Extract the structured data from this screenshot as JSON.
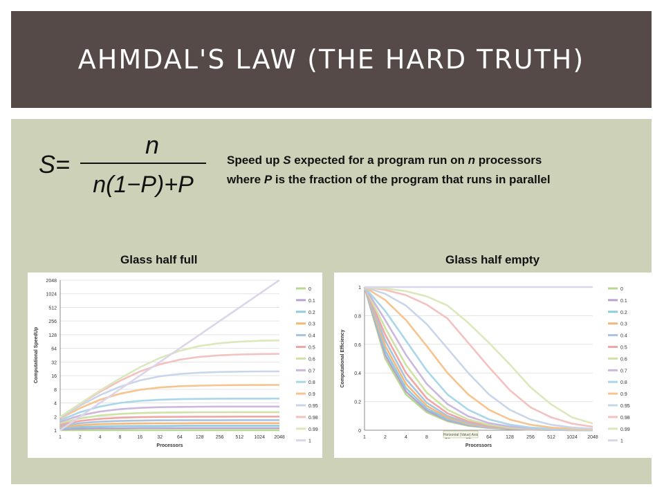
{
  "title": "AHMDAL'S LAW (THE HARD TRUTH)",
  "formula": {
    "lhs": "S=",
    "numerator": "n",
    "denominator": "n(1−P)+P"
  },
  "description": {
    "line1": [
      "Speed up ",
      "S",
      " expected for a program run on ",
      "n",
      " processors"
    ],
    "line2": [
      "where ",
      "P",
      " is the fraction of the program that runs in parallel"
    ]
  },
  "colors": {
    "series": [
      "#b7d98e",
      "#b8a2cf",
      "#8fcbe0",
      "#f4b77a",
      "#a8c3dd",
      "#efa6a4",
      "#cfe2a6",
      "#cbb8de",
      "#a9d6e8",
      "#f7c48f",
      "#c9d6ea",
      "#f3c2c0",
      "#dbe8bb",
      "#dcd5ea"
    ]
  },
  "chart_data": [
    {
      "type": "line",
      "title": "Glass half full",
      "xlabel": "Processors",
      "ylabel": "Computational SpeedUp",
      "y_scale": "log2",
      "x": [
        1,
        2,
        4,
        8,
        16,
        32,
        64,
        128,
        256,
        512,
        1024,
        2048
      ],
      "x_tick_labels": [
        "1",
        "2",
        "4",
        "8",
        "16",
        "32",
        "64",
        "128",
        "256",
        "512",
        "1024",
        "2048"
      ],
      "y_ticks": [
        1,
        2,
        4,
        8,
        16,
        32,
        64,
        128,
        256,
        512,
        1024,
        2048
      ],
      "ylim": [
        1,
        2048
      ],
      "legend_position": "right",
      "series": [
        {
          "name": "0",
          "values": [
            1,
            1,
            1,
            1,
            1,
            1,
            1,
            1,
            1,
            1,
            1,
            1
          ]
        },
        {
          "name": "0.1",
          "values": [
            1.05,
            1.08,
            1.1,
            1.1,
            1.11,
            1.11,
            1.11,
            1.11,
            1.11,
            1.11,
            1.11,
            1.11
          ]
        },
        {
          "name": "0.2",
          "values": [
            1.11,
            1.18,
            1.21,
            1.23,
            1.24,
            1.24,
            1.25,
            1.25,
            1.25,
            1.25,
            1.25,
            1.25
          ]
        },
        {
          "name": "0.3",
          "values": [
            1.18,
            1.29,
            1.36,
            1.39,
            1.41,
            1.42,
            1.42,
            1.43,
            1.43,
            1.43,
            1.43,
            1.43
          ]
        },
        {
          "name": "0.4",
          "values": [
            1.25,
            1.43,
            1.54,
            1.6,
            1.63,
            1.65,
            1.66,
            1.66,
            1.66,
            1.67,
            1.67,
            1.67
          ]
        },
        {
          "name": "0.5",
          "values": [
            1.33,
            1.6,
            1.78,
            1.88,
            1.94,
            1.97,
            1.98,
            1.99,
            1.99,
            2,
            2,
            2
          ]
        },
        {
          "name": "0.6",
          "values": [
            1.43,
            1.82,
            2.11,
            2.29,
            2.39,
            2.44,
            2.47,
            2.49,
            2.49,
            2.5,
            2.5,
            2.5
          ]
        },
        {
          "name": "0.7",
          "values": [
            1.54,
            2.11,
            2.58,
            2.91,
            3.11,
            3.22,
            3.27,
            3.3,
            3.32,
            3.33,
            3.33,
            3.33
          ]
        },
        {
          "name": "0.8",
          "values": [
            1.67,
            2.5,
            3.33,
            4.0,
            4.44,
            4.71,
            4.85,
            4.92,
            4.96,
            4.98,
            4.99,
            5.0
          ]
        },
        {
          "name": "0.9",
          "values": [
            1.82,
            3.08,
            4.71,
            6.4,
            7.8,
            8.77,
            9.34,
            9.66,
            9.83,
            9.91,
            9.96,
            9.98
          ]
        },
        {
          "name": "0.95",
          "values": [
            1.9,
            3.48,
            5.93,
            9.14,
            12.55,
            15.42,
            17.41,
            18.62,
            19.28,
            19.64,
            19.82,
            19.91
          ]
        },
        {
          "name": "0.98",
          "values": [
            1.96,
            3.77,
            7.02,
            12.31,
            19.75,
            28.32,
            36.05,
            41.53,
            44.92,
            46.84,
            47.86,
            48.39
          ]
        },
        {
          "name": "0.99",
          "values": [
            1.98,
            3.88,
            7.48,
            13.91,
            24.43,
            39.26,
            56.39,
            72.11,
            83.12,
            90.1,
            94.05,
            96.14
          ]
        },
        {
          "name": "1",
          "values": [
            1,
            2,
            4,
            8,
            16,
            32,
            64,
            128,
            256,
            512,
            1024,
            2048
          ]
        }
      ]
    },
    {
      "type": "line",
      "title": "Glass half empty",
      "xlabel": "Processors",
      "ylabel": "Computational Efficiency",
      "x": [
        1,
        2,
        4,
        8,
        16,
        32,
        64,
        128,
        256,
        512,
        1024,
        2048
      ],
      "x_tick_labels": [
        "1",
        "2",
        "4",
        "8",
        "16",
        "32",
        "64",
        "128",
        "256",
        "512",
        "1024",
        "2048"
      ],
      "y_ticks": [
        0,
        0.2,
        0.4,
        0.6,
        0.8,
        1
      ],
      "y_tick_labels": [
        "0",
        "0.2",
        "0.4",
        "0.6",
        "0.8",
        "1"
      ],
      "ylim": [
        0,
        1
      ],
      "legend_position": "right",
      "annotation": "Horizontal (Value) Axis",
      "series": [
        {
          "name": "0",
          "values": [
            1,
            0.5,
            0.25,
            0.125,
            0.0625,
            0.031,
            0.016,
            0.008,
            0.004,
            0.002,
            0.001,
            0.0005
          ]
        },
        {
          "name": "0.1",
          "values": [
            1,
            0.526,
            0.27,
            0.137,
            0.069,
            0.035,
            0.017,
            0.009,
            0.004,
            0.002,
            0.001,
            0.0005
          ]
        },
        {
          "name": "0.2",
          "values": [
            1,
            0.556,
            0.294,
            0.152,
            0.077,
            0.039,
            0.019,
            0.01,
            0.005,
            0.002,
            0.001,
            0.0006
          ]
        },
        {
          "name": "0.3",
          "values": [
            1,
            0.588,
            0.323,
            0.17,
            0.088,
            0.044,
            0.022,
            0.011,
            0.006,
            0.003,
            0.001,
            0.0007
          ]
        },
        {
          "name": "0.4",
          "values": [
            1,
            0.625,
            0.357,
            0.192,
            0.1,
            0.051,
            0.026,
            0.013,
            0.007,
            0.003,
            0.002,
            0.0008
          ]
        },
        {
          "name": "0.5",
          "values": [
            1,
            0.667,
            0.4,
            0.222,
            0.118,
            0.061,
            0.031,
            0.016,
            0.008,
            0.004,
            0.002,
            0.001
          ]
        },
        {
          "name": "0.6",
          "values": [
            1,
            0.714,
            0.455,
            0.263,
            0.143,
            0.075,
            0.038,
            0.019,
            0.01,
            0.005,
            0.002,
            0.001
          ]
        },
        {
          "name": "0.7",
          "values": [
            1,
            0.769,
            0.526,
            0.323,
            0.182,
            0.097,
            0.05,
            0.026,
            0.013,
            0.007,
            0.003,
            0.002
          ]
        },
        {
          "name": "0.8",
          "values": [
            1,
            0.833,
            0.625,
            0.417,
            0.25,
            0.143,
            0.076,
            0.039,
            0.019,
            0.01,
            0.005,
            0.002
          ]
        },
        {
          "name": "0.9",
          "values": [
            1,
            0.909,
            0.769,
            0.588,
            0.4,
            0.25,
            0.143,
            0.075,
            0.038,
            0.019,
            0.01,
            0.005
          ]
        },
        {
          "name": "0.95",
          "values": [
            1,
            0.952,
            0.87,
            0.741,
            0.571,
            0.4,
            0.25,
            0.143,
            0.075,
            0.038,
            0.019,
            0.01
          ]
        },
        {
          "name": "0.98",
          "values": [
            1,
            0.98,
            0.943,
            0.877,
            0.78,
            0.61,
            0.44,
            0.28,
            0.16,
            0.09,
            0.046,
            0.024
          ]
        },
        {
          "name": "0.99",
          "values": [
            1,
            0.99,
            0.971,
            0.935,
            0.871,
            0.75,
            0.61,
            0.46,
            0.3,
            0.18,
            0.09,
            0.047
          ]
        },
        {
          "name": "1",
          "values": [
            1,
            1,
            1,
            1,
            1,
            1,
            1,
            1,
            1,
            1,
            1,
            1
          ]
        }
      ]
    }
  ]
}
